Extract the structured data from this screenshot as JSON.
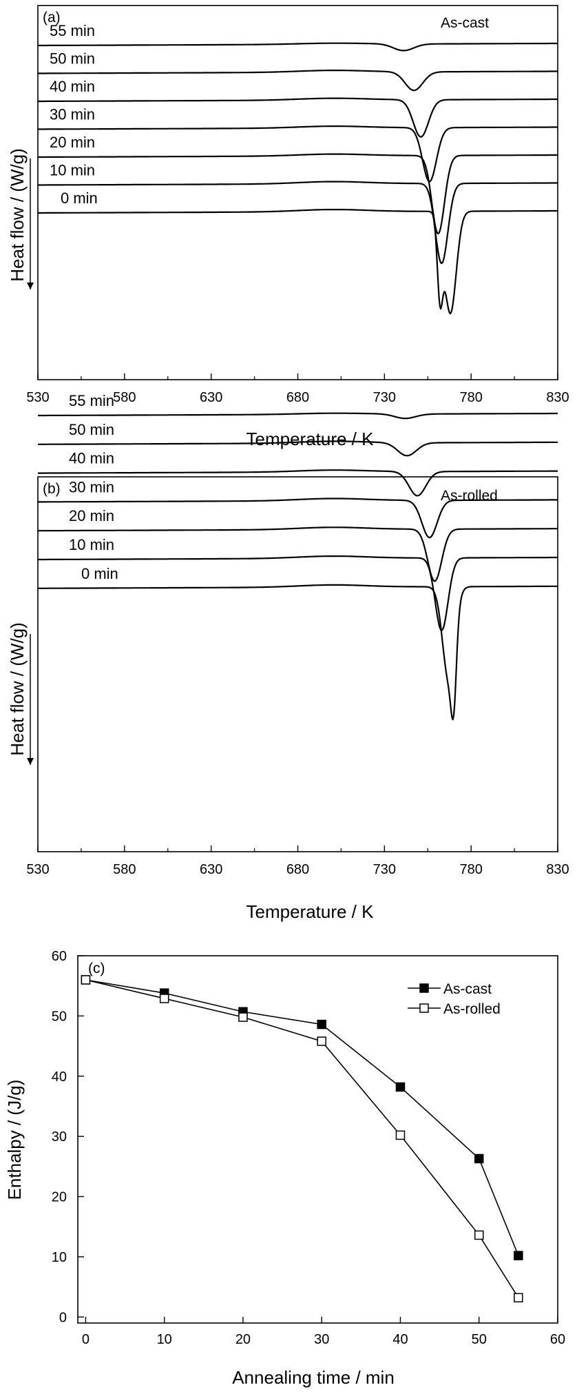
{
  "chart_data": [
    {
      "type": "line",
      "panel_label": "(a)",
      "annotation": "As-cast",
      "xlabel": "Temperature / K",
      "ylabel": "Heat flow / (W/g)",
      "xlim": [
        530,
        830
      ],
      "xticks": [
        "530",
        "580",
        "630",
        "680",
        "730",
        "780",
        "830"
      ],
      "series": [
        {
          "name": "55 min",
          "peak_T": 741,
          "depth": 0.18,
          "shoulder_T": null,
          "bump": 0.03
        },
        {
          "name": "50 min",
          "peak_T": 747,
          "depth": 0.5,
          "shoulder_T": null,
          "bump": 0.05
        },
        {
          "name": "40 min",
          "peak_T": 751,
          "depth": 1.0,
          "shoulder_T": null,
          "bump": 0.05
        },
        {
          "name": "30 min",
          "peak_T": 756,
          "depth": 1.45,
          "shoulder_T": null,
          "bump": 0.05
        },
        {
          "name": "20 min",
          "peak_T": 761,
          "depth": 2.1,
          "shoulder_T": null,
          "bump": 0.05
        },
        {
          "name": "10 min",
          "peak_T": 763,
          "depth": 2.15,
          "shoulder_T": null,
          "bump": 0.06
        },
        {
          "name": "0 min",
          "peak_T": 768,
          "depth": 2.75,
          "shoulder_T": 762,
          "bump": 0.06
        }
      ]
    },
    {
      "type": "line",
      "panel_label": "(b)",
      "annotation": "As-rolled",
      "xlabel": "Temperature / K",
      "ylabel": "Heat flow / (W/g)",
      "xlim": [
        530,
        830
      ],
      "xticks": [
        "530",
        "580",
        "630",
        "680",
        "730",
        "780",
        "830"
      ],
      "series": [
        {
          "name": "55 min",
          "peak_T": 742,
          "depth": 0.12,
          "shoulder_T": null,
          "bump": 0.03
        },
        {
          "name": "50 min",
          "peak_T": 743,
          "depth": 0.35,
          "shoulder_T": null,
          "bump": 0.05
        },
        {
          "name": "40 min",
          "peak_T": 749,
          "depth": 0.65,
          "shoulder_T": null,
          "bump": 0.05
        },
        {
          "name": "30 min",
          "peak_T": 756,
          "depth": 1.0,
          "shoulder_T": null,
          "bump": 0.06
        },
        {
          "name": "20 min",
          "peak_T": 759,
          "depth": 1.4,
          "shoulder_T": null,
          "bump": 0.06
        },
        {
          "name": "10 min",
          "peak_T": 763,
          "depth": 1.95,
          "shoulder_T": null,
          "bump": 0.06
        },
        {
          "name": "0 min",
          "peak_T": 767,
          "depth": 2.45,
          "shoulder_T": 770,
          "bump": 0.06
        }
      ]
    },
    {
      "type": "line",
      "panel_label": "(c)",
      "xlabel": "Annealing time / min",
      "ylabel": "Enthalpy / (J/g)",
      "xlim": [
        -1,
        60
      ],
      "ylim": [
        -1,
        60
      ],
      "xticks": [
        "0",
        "10",
        "20",
        "30",
        "40",
        "50",
        "60"
      ],
      "yticks": [
        "0",
        "10",
        "20",
        "30",
        "40",
        "50",
        "60"
      ],
      "legend": "top-right",
      "x": [
        0,
        10,
        20,
        30,
        40,
        50,
        55
      ],
      "series": [
        {
          "name": "As-cast",
          "marker": "filled-square",
          "values": [
            56.0,
            53.8,
            50.7,
            48.6,
            38.2,
            26.3,
            10.2
          ]
        },
        {
          "name": "As-rolled",
          "marker": "open-square",
          "values": [
            56.0,
            52.9,
            49.8,
            45.8,
            30.2,
            13.6,
            3.2
          ]
        }
      ]
    }
  ]
}
